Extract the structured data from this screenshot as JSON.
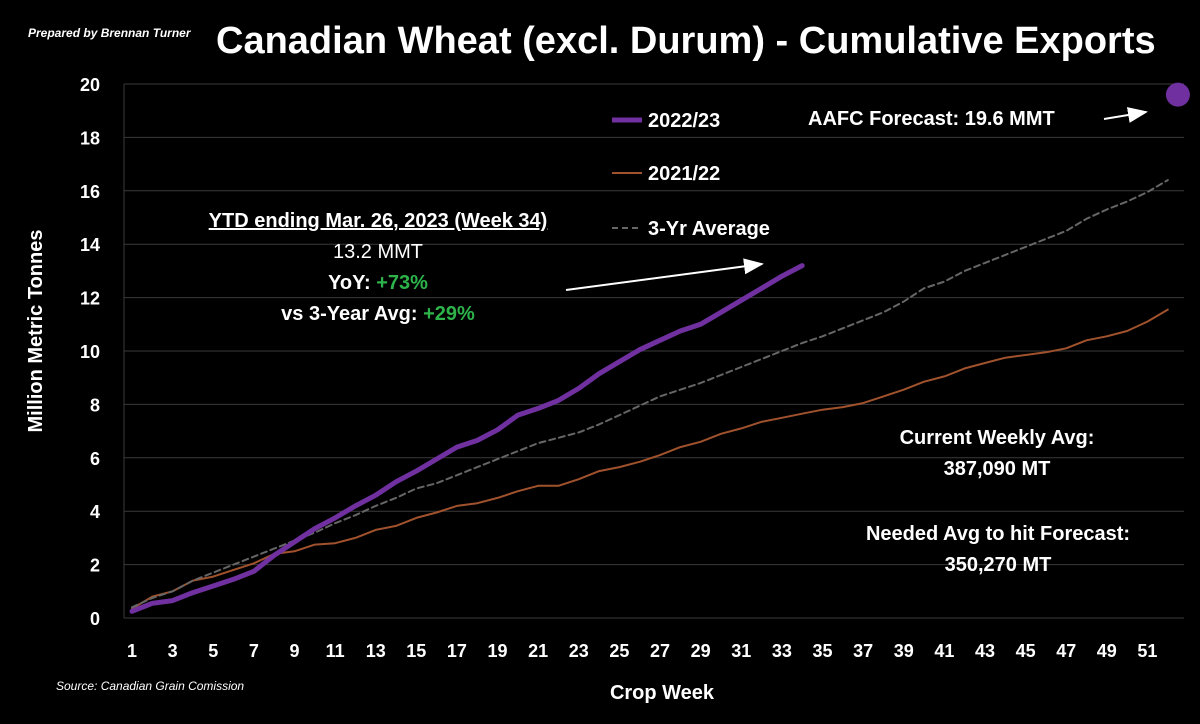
{
  "header": {
    "prepared_by": "Prepared by Brennan Turner",
    "title": "Canadian Wheat (excl. Durum) - Cumulative Exports",
    "source": "Source: Canadian Grain Comission"
  },
  "annotations": {
    "ytd_heading": "YTD ending Mar. 26, 2023 (Week 34)",
    "ytd_value": "13.2 MMT",
    "yoy_label": "YoY: ",
    "yoy_value": "+73%",
    "avg_label": "vs 3-Year Avg: ",
    "avg_value": "+29%",
    "forecast": "AAFC Forecast: 19.6 MMT",
    "weekly_avg_label": "Current Weekly Avg:",
    "weekly_avg_value": "387,090 MT",
    "needed_label": "Needed Avg to hit Forecast:",
    "needed_value": "350,270 MT"
  },
  "colors": {
    "s2022": "#7030a0",
    "s2021": "#a0522d",
    "avg": "#666666",
    "grid": "#3a3a3a",
    "green": "#2db34a"
  },
  "chart_data": {
    "type": "line",
    "title": "Canadian Wheat (excl. Durum) - Cumulative Exports",
    "xlabel": "Crop Week",
    "ylabel": "Million Metric Tonnes",
    "xlim": [
      1,
      52
    ],
    "ylim": [
      0,
      20
    ],
    "yticks": [
      0,
      2,
      4,
      6,
      8,
      10,
      12,
      14,
      16,
      18,
      20
    ],
    "xticks": [
      1,
      3,
      5,
      7,
      9,
      11,
      13,
      15,
      17,
      19,
      21,
      23,
      25,
      27,
      29,
      31,
      33,
      35,
      37,
      39,
      41,
      43,
      45,
      47,
      49,
      51
    ],
    "grid": "horizontal",
    "legend": "top-center",
    "series": [
      {
        "name": "2022/23",
        "style": "solid-thick",
        "x": [
          1,
          2,
          3,
          4,
          5,
          6,
          7,
          8,
          9,
          10,
          11,
          12,
          13,
          14,
          15,
          16,
          17,
          18,
          19,
          20,
          21,
          22,
          23,
          24,
          25,
          26,
          27,
          28,
          29,
          30,
          31,
          32,
          33,
          34
        ],
        "values": [
          0.25,
          0.55,
          0.65,
          0.95,
          1.2,
          1.45,
          1.75,
          2.35,
          2.85,
          3.35,
          3.75,
          4.2,
          4.6,
          5.1,
          5.5,
          5.95,
          6.4,
          6.65,
          7.05,
          7.6,
          7.85,
          8.15,
          8.6,
          9.15,
          9.6,
          10.05,
          10.4,
          10.75,
          11.0,
          11.45,
          11.9,
          12.35,
          12.8,
          13.2
        ]
      },
      {
        "name": "2021/22",
        "style": "solid-thin",
        "x": [
          1,
          2,
          3,
          4,
          5,
          6,
          7,
          8,
          9,
          10,
          11,
          12,
          13,
          14,
          15,
          16,
          17,
          18,
          19,
          20,
          21,
          22,
          23,
          24,
          25,
          26,
          27,
          28,
          29,
          30,
          31,
          32,
          33,
          34,
          35,
          36,
          37,
          38,
          39,
          40,
          41,
          42,
          43,
          44,
          45,
          46,
          47,
          48,
          49,
          50,
          51,
          52
        ],
        "values": [
          0.35,
          0.8,
          1.0,
          1.4,
          1.55,
          1.8,
          2.05,
          2.4,
          2.5,
          2.75,
          2.8,
          3.0,
          3.3,
          3.45,
          3.75,
          3.95,
          4.2,
          4.3,
          4.5,
          4.75,
          4.95,
          4.95,
          5.2,
          5.5,
          5.65,
          5.85,
          6.1,
          6.4,
          6.6,
          6.9,
          7.1,
          7.35,
          7.5,
          7.65,
          7.8,
          7.9,
          8.05,
          8.3,
          8.55,
          8.85,
          9.05,
          9.35,
          9.55,
          9.75,
          9.85,
          9.95,
          10.1,
          10.4,
          10.55,
          10.75,
          11.1,
          11.55
        ]
      },
      {
        "name": "3-Yr Average",
        "style": "dashed",
        "x": [
          1,
          2,
          3,
          4,
          5,
          6,
          7,
          8,
          9,
          10,
          11,
          12,
          13,
          14,
          15,
          16,
          17,
          18,
          19,
          20,
          21,
          22,
          23,
          24,
          25,
          26,
          27,
          28,
          29,
          30,
          31,
          32,
          33,
          34,
          35,
          36,
          37,
          38,
          39,
          40,
          41,
          42,
          43,
          44,
          45,
          46,
          47,
          48,
          49,
          50,
          51,
          52
        ],
        "values": [
          0.4,
          0.75,
          1.0,
          1.4,
          1.7,
          2.0,
          2.3,
          2.6,
          2.9,
          3.2,
          3.55,
          3.85,
          4.2,
          4.5,
          4.85,
          5.05,
          5.35,
          5.65,
          5.95,
          6.25,
          6.55,
          6.75,
          6.95,
          7.25,
          7.6,
          7.95,
          8.3,
          8.55,
          8.8,
          9.1,
          9.4,
          9.7,
          10.0,
          10.3,
          10.55,
          10.85,
          11.15,
          11.45,
          11.85,
          12.35,
          12.6,
          13.0,
          13.3,
          13.6,
          13.9,
          14.2,
          14.5,
          14.95,
          15.3,
          15.6,
          15.95,
          16.4
        ]
      }
    ],
    "forecast_point": {
      "x": 52.5,
      "y": 19.6
    }
  }
}
